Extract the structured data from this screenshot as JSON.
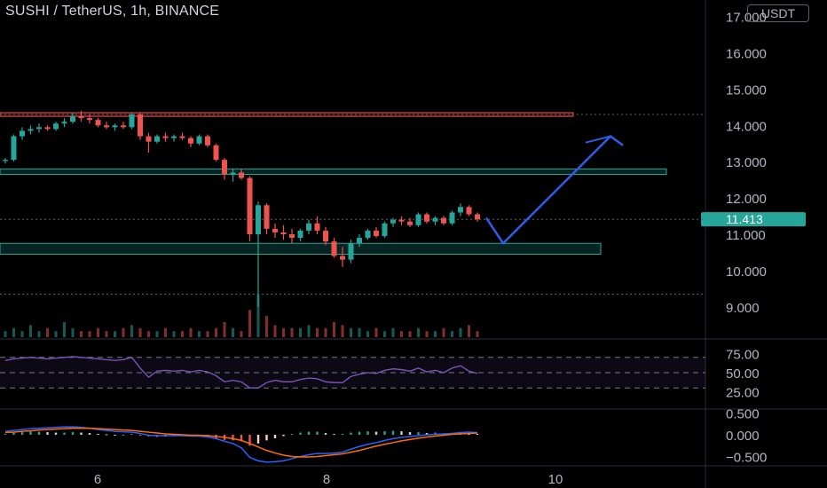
{
  "header": {
    "title": "SUSHI / TetherUS, 1h, BINANCE",
    "currency": "USDT"
  },
  "price_axis": {
    "ticks": [
      "17.000",
      "16.000",
      "15.000",
      "14.000",
      "13.000",
      "12.000",
      "11.000",
      "10.000",
      "9.000"
    ],
    "current_price": "11.413",
    "current_price_color": "#26a69a"
  },
  "time_axis": {
    "ticks": [
      "6",
      "8",
      "10"
    ]
  },
  "rsi_axis": {
    "ticks": [
      "75.00",
      "50.00",
      "25.00"
    ]
  },
  "macd_axis": {
    "ticks": [
      "0.500",
      "0.000",
      "−0.500"
    ]
  },
  "colors": {
    "up": "#26a69a",
    "down": "#ef5350",
    "projection": "#2f5de8",
    "rsi": "#7e57c2",
    "macd": "#2962ff",
    "signal": "#ff6d00"
  },
  "chart_data": [
    {
      "type": "candlestick",
      "title": "SUSHI / TetherUS, 1h, BINANCE",
      "ylim": [
        9.0,
        17.0
      ],
      "last_price": 11.413,
      "candles_ohlc": [
        [
          13.02,
          13.1,
          12.95,
          13.05
        ],
        [
          13.05,
          13.75,
          13.0,
          13.7
        ],
        [
          13.7,
          13.95,
          13.6,
          13.85
        ],
        [
          13.85,
          14.0,
          13.75,
          13.9
        ],
        [
          13.9,
          14.05,
          13.8,
          13.95
        ],
        [
          13.95,
          14.0,
          13.85,
          13.9
        ],
        [
          13.9,
          14.1,
          13.85,
          14.05
        ],
        [
          14.05,
          14.2,
          13.95,
          14.1
        ],
        [
          14.1,
          14.35,
          14.05,
          14.25
        ],
        [
          14.25,
          14.4,
          14.1,
          14.2
        ],
        [
          14.2,
          14.3,
          14.05,
          14.15
        ],
        [
          14.15,
          14.2,
          13.95,
          14.0
        ],
        [
          14.0,
          14.1,
          13.9,
          13.95
        ],
        [
          13.95,
          14.05,
          13.85,
          14.0
        ],
        [
          14.0,
          14.1,
          13.9,
          13.95
        ],
        [
          13.95,
          14.35,
          13.9,
          14.3
        ],
        [
          14.3,
          14.35,
          13.6,
          13.7
        ],
        [
          13.7,
          13.8,
          13.25,
          13.55
        ],
        [
          13.55,
          13.75,
          13.5,
          13.7
        ],
        [
          13.7,
          13.8,
          13.55,
          13.65
        ],
        [
          13.65,
          13.75,
          13.55,
          13.7
        ],
        [
          13.7,
          13.8,
          13.6,
          13.65
        ],
        [
          13.65,
          13.7,
          13.4,
          13.5
        ],
        [
          13.5,
          13.75,
          13.45,
          13.7
        ],
        [
          13.7,
          13.75,
          13.4,
          13.45
        ],
        [
          13.45,
          13.5,
          13.0,
          13.05
        ],
        [
          13.05,
          13.1,
          12.5,
          12.65
        ],
        [
          12.65,
          12.8,
          12.45,
          12.7
        ],
        [
          12.7,
          12.8,
          12.5,
          12.55
        ],
        [
          12.55,
          12.6,
          10.8,
          11.0
        ],
        [
          11.0,
          11.9,
          9.0,
          11.8
        ],
        [
          11.8,
          11.85,
          11.0,
          11.15
        ],
        [
          11.15,
          11.3,
          10.9,
          11.05
        ],
        [
          11.05,
          11.25,
          10.85,
          11.0
        ],
        [
          11.0,
          11.15,
          10.75,
          10.9
        ],
        [
          10.9,
          11.15,
          10.8,
          11.1
        ],
        [
          11.1,
          11.4,
          11.0,
          11.3
        ],
        [
          11.3,
          11.5,
          11.0,
          11.1
        ],
        [
          11.1,
          11.2,
          10.7,
          10.8
        ],
        [
          10.8,
          10.9,
          10.35,
          10.4
        ],
        [
          10.4,
          10.65,
          10.1,
          10.3
        ],
        [
          10.3,
          10.85,
          10.2,
          10.75
        ],
        [
          10.75,
          11.0,
          10.65,
          10.9
        ],
        [
          10.9,
          11.15,
          10.85,
          11.1
        ],
        [
          11.1,
          11.2,
          10.9,
          10.95
        ],
        [
          10.95,
          11.35,
          10.9,
          11.3
        ],
        [
          11.3,
          11.45,
          11.2,
          11.4
        ],
        [
          11.4,
          11.5,
          11.25,
          11.35
        ],
        [
          11.35,
          11.45,
          11.2,
          11.25
        ],
        [
          11.25,
          11.6,
          11.2,
          11.55
        ],
        [
          11.55,
          11.6,
          11.3,
          11.35
        ],
        [
          11.35,
          11.5,
          11.25,
          11.45
        ],
        [
          11.45,
          11.5,
          11.25,
          11.3
        ],
        [
          11.3,
          11.65,
          11.25,
          11.6
        ],
        [
          11.6,
          11.85,
          11.5,
          11.75
        ],
        [
          11.75,
          11.8,
          11.5,
          11.55
        ],
        [
          11.55,
          11.6,
          11.35,
          11.41
        ]
      ],
      "volumes": [
        2,
        3,
        2,
        4,
        2,
        3,
        2,
        5,
        3,
        2,
        2,
        3,
        2,
        2,
        3,
        4,
        3,
        2,
        2,
        3,
        2,
        2,
        3,
        2,
        2,
        3,
        5,
        3,
        2,
        9,
        14,
        7,
        4,
        3,
        3,
        3,
        4,
        3,
        3,
        5,
        4,
        3,
        3,
        2,
        3,
        2,
        3,
        2,
        2,
        3,
        2,
        2,
        3,
        2,
        3,
        4,
        2
      ],
      "horizontal_levels": [
        {
          "kind": "resistance",
          "from": 14.25,
          "to": 14.35,
          "color": "#ef5350"
        },
        {
          "kind": "support",
          "from": 12.65,
          "to": 12.8,
          "color": "#26a69a"
        },
        {
          "kind": "support",
          "from": 10.45,
          "to": 10.75,
          "color": "#26a69a"
        },
        {
          "kind": "dotted",
          "value": 14.3
        },
        {
          "kind": "dotted",
          "value": 11.41
        },
        {
          "kind": "dotted",
          "value": 9.35
        }
      ],
      "projection_path": [
        [
          11.45
        ],
        [
          10.75
        ],
        [
          13.7
        ],
        [
          13.45
        ]
      ]
    },
    {
      "type": "line",
      "ylim": [
        15,
        90
      ],
      "band": [
        30,
        70
      ],
      "ticks": [
        25,
        50,
        75
      ],
      "values": [
        66,
        68,
        69,
        70,
        69,
        68,
        69,
        70,
        71,
        70,
        69,
        68,
        67,
        66,
        67,
        70,
        56,
        44,
        52,
        53,
        52,
        53,
        51,
        53,
        51,
        46,
        38,
        40,
        38,
        30,
        30,
        37,
        40,
        38,
        38,
        41,
        43,
        42,
        38,
        37,
        37,
        45,
        48,
        50,
        49,
        53,
        55,
        54,
        52,
        56,
        51,
        53,
        50,
        56,
        59,
        52,
        49
      ]
    },
    {
      "type": "bar",
      "ylim": [
        -0.75,
        0.75
      ],
      "ticks": [
        0.5,
        0,
        -0.5
      ],
      "histogram": [
        0.02,
        0.05,
        0.06,
        0.07,
        0.07,
        0.06,
        0.05,
        0.05,
        0.06,
        0.05,
        0.04,
        0.02,
        0.01,
        0.0,
        0.0,
        0.02,
        -0.02,
        -0.04,
        -0.05,
        -0.04,
        -0.03,
        -0.03,
        -0.04,
        -0.03,
        -0.05,
        -0.08,
        -0.12,
        -0.13,
        -0.15,
        -0.25,
        -0.2,
        -0.13,
        -0.08,
        -0.03,
        0.02,
        0.05,
        0.07,
        0.07,
        0.04,
        0.02,
        0.02,
        0.05,
        0.07,
        0.08,
        0.07,
        0.08,
        0.09,
        0.08,
        0.06,
        0.06,
        0.04,
        0.05,
        0.03,
        0.04,
        0.05,
        0.03,
        0.02
      ],
      "macd": [
        0.08,
        0.1,
        0.12,
        0.14,
        0.15,
        0.16,
        0.17,
        0.18,
        0.18,
        0.17,
        0.15,
        0.12,
        0.1,
        0.08,
        0.07,
        0.06,
        0.03,
        -0.01,
        -0.02,
        -0.02,
        -0.02,
        -0.02,
        -0.03,
        -0.03,
        -0.05,
        -0.09,
        -0.15,
        -0.2,
        -0.3,
        -0.52,
        -0.6,
        -0.63,
        -0.62,
        -0.6,
        -0.55,
        -0.5,
        -0.46,
        -0.43,
        -0.43,
        -0.42,
        -0.4,
        -0.33,
        -0.27,
        -0.22,
        -0.18,
        -0.13,
        -0.09,
        -0.06,
        -0.04,
        -0.02,
        0.0,
        0.01,
        0.02,
        0.03,
        0.05,
        0.06,
        0.05
      ],
      "signal": [
        0.05,
        0.06,
        0.08,
        0.09,
        0.11,
        0.12,
        0.13,
        0.14,
        0.15,
        0.15,
        0.15,
        0.14,
        0.13,
        0.12,
        0.11,
        0.1,
        0.08,
        0.06,
        0.04,
        0.02,
        0.01,
        0.0,
        -0.01,
        -0.01,
        -0.02,
        -0.04,
        -0.06,
        -0.09,
        -0.13,
        -0.2,
        -0.28,
        -0.36,
        -0.42,
        -0.47,
        -0.5,
        -0.51,
        -0.51,
        -0.5,
        -0.48,
        -0.46,
        -0.44,
        -0.4,
        -0.36,
        -0.31,
        -0.26,
        -0.22,
        -0.18,
        -0.14,
        -0.11,
        -0.08,
        -0.05,
        -0.03,
        -0.01,
        0.01,
        0.02,
        0.03,
        0.04
      ]
    }
  ]
}
